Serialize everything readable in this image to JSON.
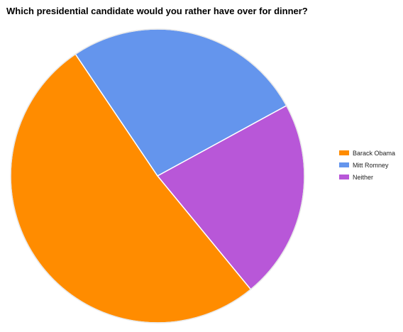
{
  "chart_data": {
    "type": "pie",
    "title": "Which presidential candidate would you rather have over for dinner?",
    "slices": [
      {
        "label": "Barack Obama",
        "value": 51.5,
        "color": "#FF8C00"
      },
      {
        "label": "Mitt Romney",
        "value": 26.5,
        "color": "#6495ED"
      },
      {
        "label": "Neither",
        "value": 22.0,
        "color": "#B857D8"
      }
    ],
    "legend_position": "right"
  }
}
